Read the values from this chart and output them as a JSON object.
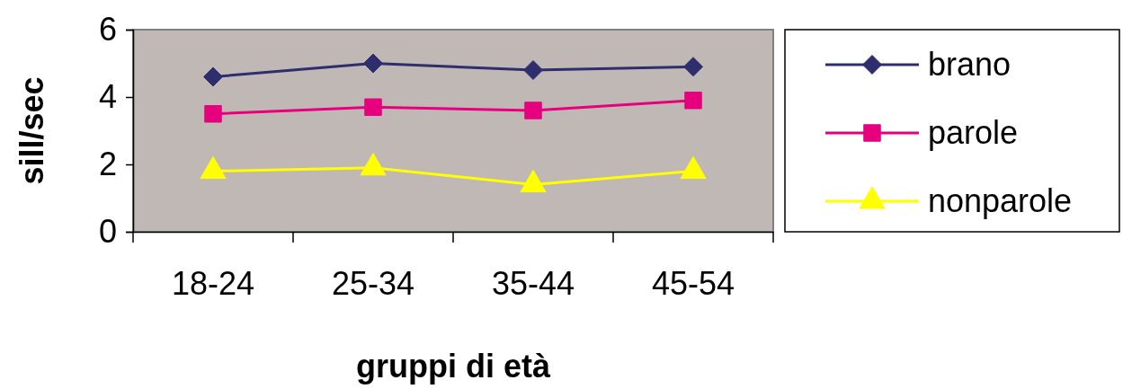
{
  "chart_data": {
    "type": "line",
    "xlabel": "gruppi di età",
    "ylabel": "sill/sec",
    "categories": [
      "18-24",
      "25-34",
      "35-44",
      "45-54"
    ],
    "series": [
      {
        "name": "brano",
        "color": "#2e2e6e",
        "marker": "diamond",
        "values": [
          4.6,
          5.0,
          4.8,
          4.9
        ]
      },
      {
        "name": "parole",
        "color": "#e6007e",
        "marker": "square",
        "values": [
          3.5,
          3.7,
          3.6,
          3.9
        ]
      },
      {
        "name": "nonparole",
        "color": "#ffff00",
        "marker": "triangle",
        "values": [
          1.8,
          1.9,
          1.4,
          1.8
        ]
      }
    ],
    "ylim": [
      0,
      6
    ],
    "yticks": [
      0,
      2,
      4,
      6
    ],
    "grid": false,
    "legend": "right",
    "line_style": "solid"
  }
}
